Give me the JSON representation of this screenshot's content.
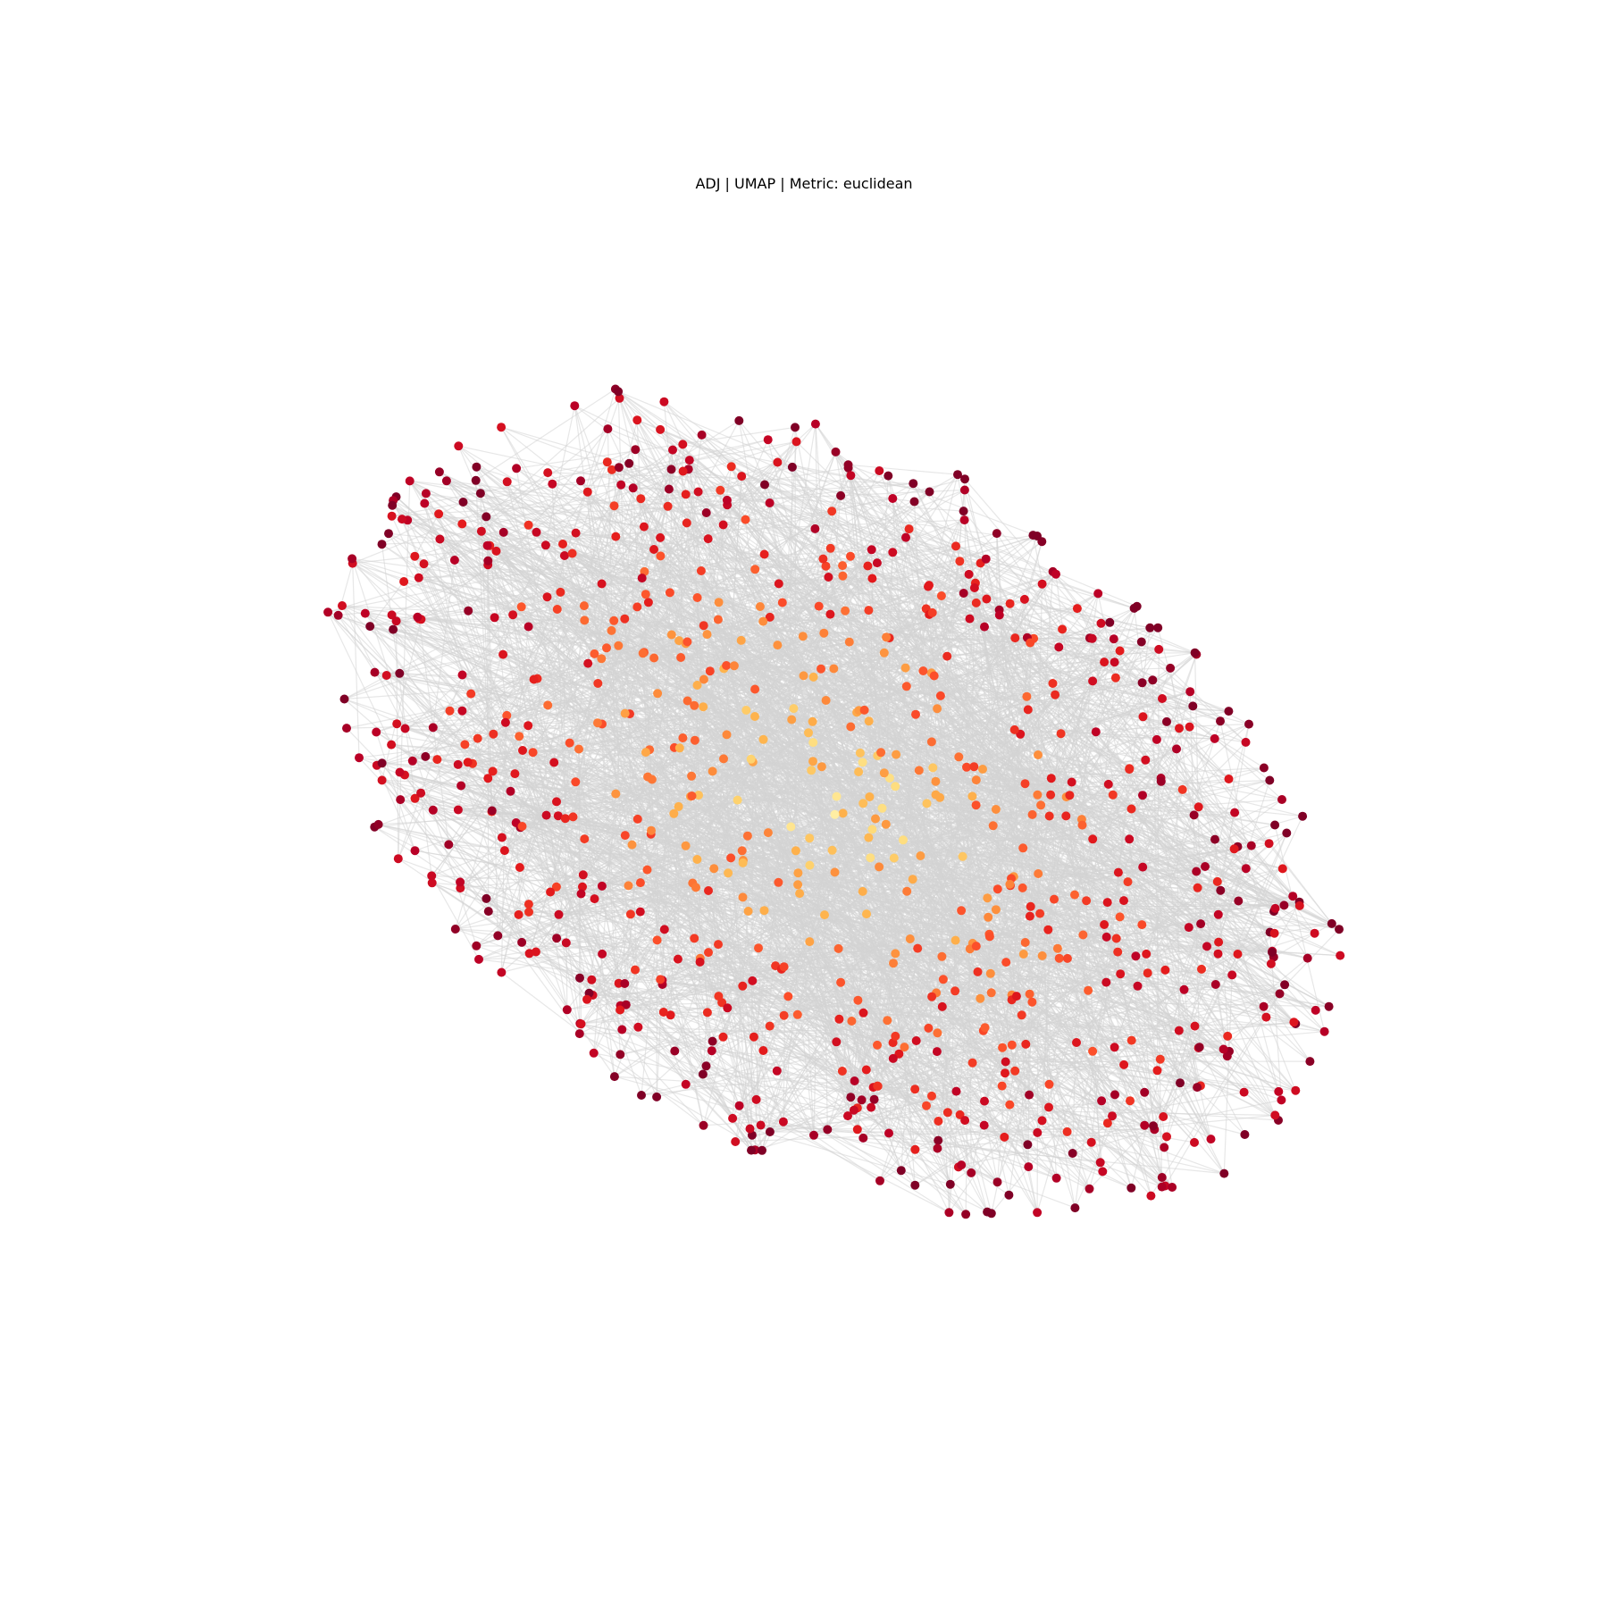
{
  "chart_data": {
    "type": "scatter",
    "title": "ADJ | UMAP | Metric: euclidean",
    "xlabel": "",
    "ylabel": "",
    "axes_visible": false,
    "grid": false,
    "legend": "none",
    "edge_color": "#d3d3d3",
    "colormap": "YlOrRd",
    "colormap_stops": [
      "#ffffcc",
      "#ffeda0",
      "#fed976",
      "#feb24c",
      "#fd8d3c",
      "#fc4e2a",
      "#e31a1c",
      "#bd0026",
      "#800026"
    ],
    "node_count": 900,
    "edges_per_node": 3,
    "xlim": [
      -1.0,
      1.0
    ],
    "ylim": [
      -1.0,
      1.0
    ],
    "embedding": {
      "shape": "ellipse",
      "center": [
        0.0,
        0.0
      ],
      "semi_major": 0.98,
      "semi_minor": 0.62,
      "rotation_deg": -32,
      "color_value_by_radius": "low at center, high at rim"
    },
    "seed": 7
  }
}
